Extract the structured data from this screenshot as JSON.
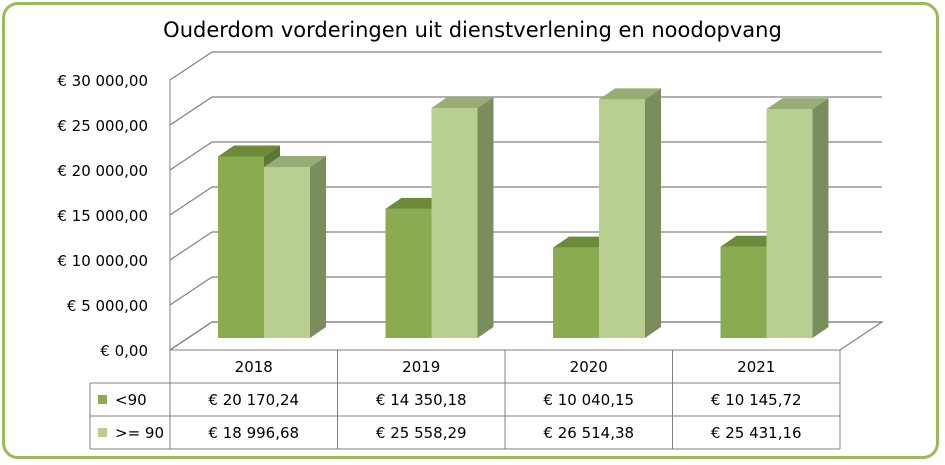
{
  "chart_data": {
    "type": "bar",
    "title": "Ouderdom vorderingen uit dienstverlening en noodopvang",
    "categories": [
      "2018",
      "2019",
      "2020",
      "2021"
    ],
    "series": [
      {
        "name": "<90",
        "values": [
          20170.24,
          14350.18,
          10040.15,
          10145.72
        ],
        "labels": [
          "€ 20 170,24",
          "€ 14 350,18",
          "€ 10 040,15",
          "€ 10 145,72"
        ]
      },
      {
        "name": ">= 90",
        "values": [
          18996.68,
          25558.29,
          26514.38,
          25431.16
        ],
        "labels": [
          "€ 18 996,68",
          "€ 25 558,29",
          "€ 26 514,38",
          "€ 25 431,16"
        ]
      }
    ],
    "yticks": [
      0,
      5000,
      10000,
      15000,
      20000,
      25000,
      30000
    ],
    "ytick_labels": [
      "€  0,00",
      "€ 5 000,00",
      "€ 10 000,00",
      "€ 15 000,00",
      "€ 20 000,00",
      "€ 25 000,00",
      "€ 30 000,00"
    ],
    "ylim": [
      0,
      30000
    ],
    "data_table": true,
    "colors": {
      "series0": "#8aab4f",
      "series1": "#b8cf91",
      "frame": "#9bbb59"
    }
  }
}
